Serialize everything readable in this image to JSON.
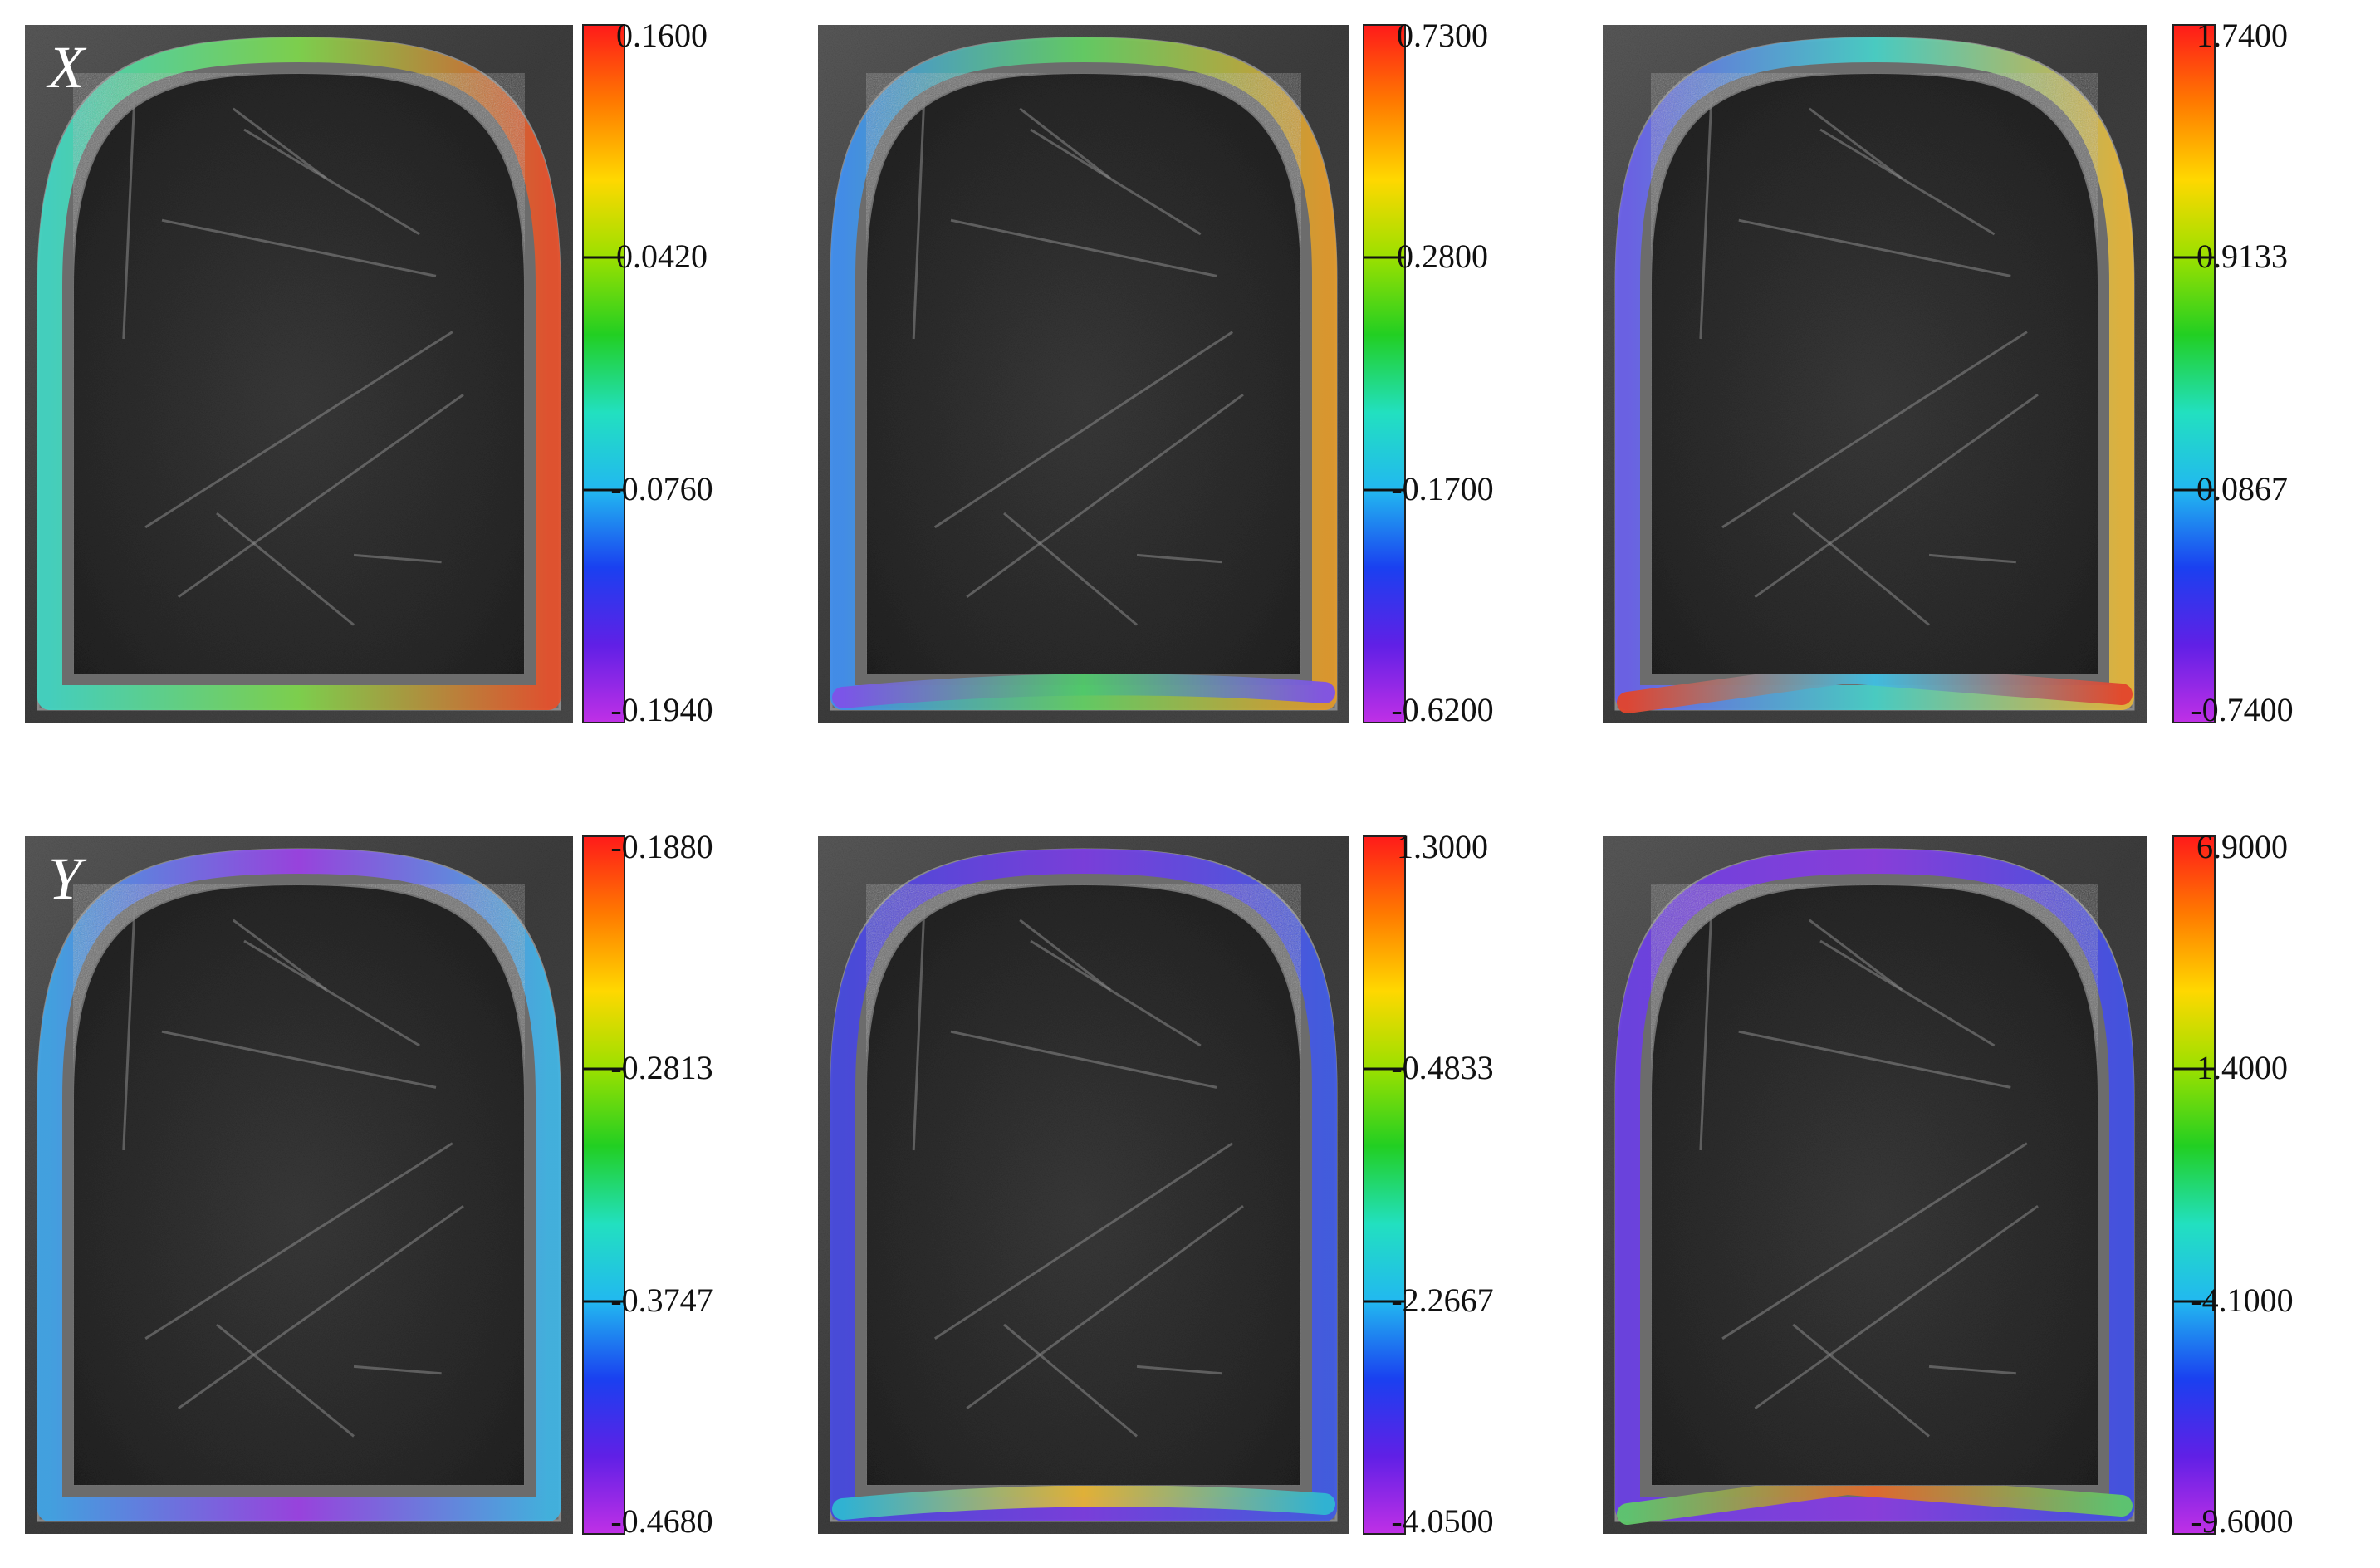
{
  "rows": [
    {
      "label": "X",
      "panels": [
        {
          "colorbar": {
            "ticks": [
              "0.1600",
              "0.0420",
              "-0.0760",
              "-0.1940"
            ]
          },
          "band_colors": {
            "left": "#41d6c3",
            "top": "#7ed64a",
            "right": "#e8502a",
            "bottom": "#74cf48",
            "left_edge_bottom": "#54c96a"
          }
        },
        {
          "colorbar": {
            "ticks": [
              "0.7300",
              "0.2800",
              "-0.1700",
              "-0.6200"
            ]
          },
          "band_colors": {
            "left": "#3f8ff0",
            "top": "#62d062",
            "right": "#e29a2a",
            "bottom": "#50c86a",
            "left_edge_bottom": "#7e52e8"
          }
        },
        {
          "colorbar": {
            "ticks": [
              "1.7400",
              "0.9133",
              "0.0867",
              "-0.7400"
            ]
          },
          "band_colors": {
            "left": "#6a60ec",
            "top": "#46d2c8",
            "right": "#e6b63a",
            "bottom": "#3fbfe3",
            "left_edge_bottom": "#e2452c"
          }
        }
      ]
    },
    {
      "label": "Y",
      "panels": [
        {
          "colorbar": {
            "ticks": [
              "-0.1880",
              "-0.2813",
              "-0.3747",
              "-0.4680"
            ]
          },
          "band_colors": {
            "left": "#3fa4e8",
            "top": "#9b3fe6",
            "right": "#3fb5e5",
            "bottom": "#ee7a2a",
            "left_edge_bottom": "#5a52e6"
          }
        },
        {
          "colorbar": {
            "ticks": [
              "1.3000",
              "-0.4833",
              "-2.2667",
              "-4.0500"
            ]
          },
          "band_colors": {
            "left": "#4548e0",
            "top": "#7a3ae2",
            "right": "#3f5ae6",
            "bottom": "#e6b335",
            "left_edge_bottom": "#2fb7d2"
          }
        },
        {
          "colorbar": {
            "ticks": [
              "6.9000",
              "1.4000",
              "-4.1000",
              "-9.6000"
            ]
          },
          "band_colors": {
            "left": "#6a3ee6",
            "top": "#8a3ae2",
            "right": "#4050e6",
            "bottom": "#e26a2c",
            "left_edge_bottom": "#5ec86a"
          }
        }
      ]
    }
  ],
  "colormap": [
    "#ff1a1a",
    "#ff7a00",
    "#ffd800",
    "#9be000",
    "#22cf22",
    "#22e0c0",
    "#22b8f0",
    "#1a40f0",
    "#6020e6",
    "#c030e6"
  ]
}
